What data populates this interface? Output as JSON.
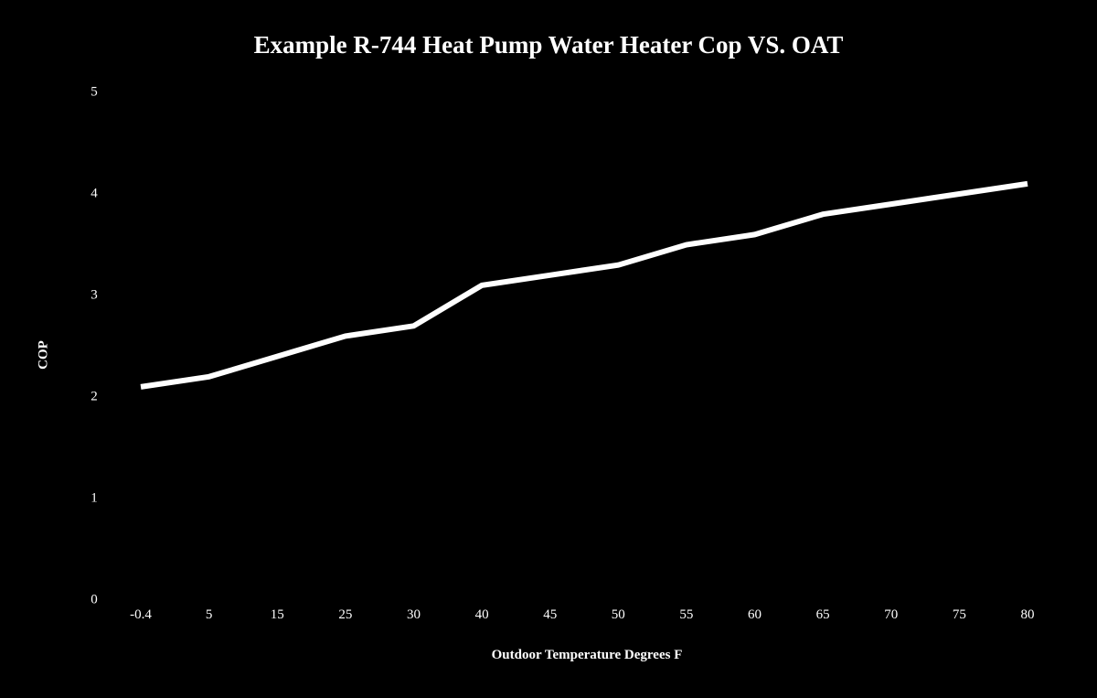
{
  "chart_data": {
    "type": "line",
    "title": "Example R-744 Heat Pump Water Heater Cop VS. OAT",
    "xlabel": "Outdoor Temperature Degrees F",
    "ylabel": "COP",
    "categories": [
      "-0.4",
      "5",
      "15",
      "25",
      "30",
      "40",
      "45",
      "50",
      "55",
      "60",
      "65",
      "70",
      "75",
      "80"
    ],
    "series": [
      {
        "name": "COP",
        "values": [
          2.1,
          2.2,
          2.4,
          2.6,
          2.7,
          3.1,
          3.2,
          3.3,
          3.5,
          3.6,
          3.8,
          3.9,
          4.0,
          4.1
        ],
        "color": "#ffffff"
      }
    ],
    "ylim": [
      0,
      5
    ],
    "yticks": [
      "0",
      "1",
      "2",
      "3",
      "4",
      "5"
    ],
    "grid": false,
    "legend": "none",
    "background": "#000000"
  }
}
